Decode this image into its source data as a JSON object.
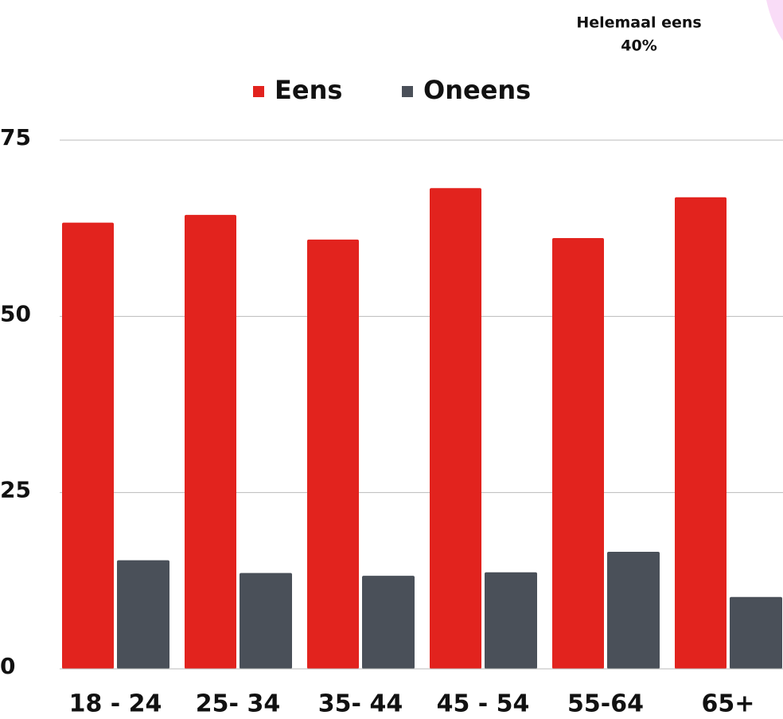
{
  "chart_data": {
    "type": "bar",
    "annotations": [
      "Helemaal eens",
      "40%"
    ],
    "categories": [
      "18 - 24",
      "25- 34",
      "35- 44",
      "45 - 54",
      "55-64",
      "65+"
    ],
    "series": [
      {
        "name": "Eens",
        "color": "#e2231e",
        "values": [
          63.3,
          64.4,
          60.9,
          68.2,
          61.1,
          66.9
        ]
      },
      {
        "name": "Oneens",
        "color": "#4a5059",
        "values": [
          15.4,
          13.6,
          13.2,
          13.7,
          16.6,
          10.2
        ]
      }
    ],
    "ylim": [
      0,
      75
    ],
    "yticks": [
      0,
      25,
      50,
      75
    ],
    "grid": true,
    "legend": "top"
  }
}
